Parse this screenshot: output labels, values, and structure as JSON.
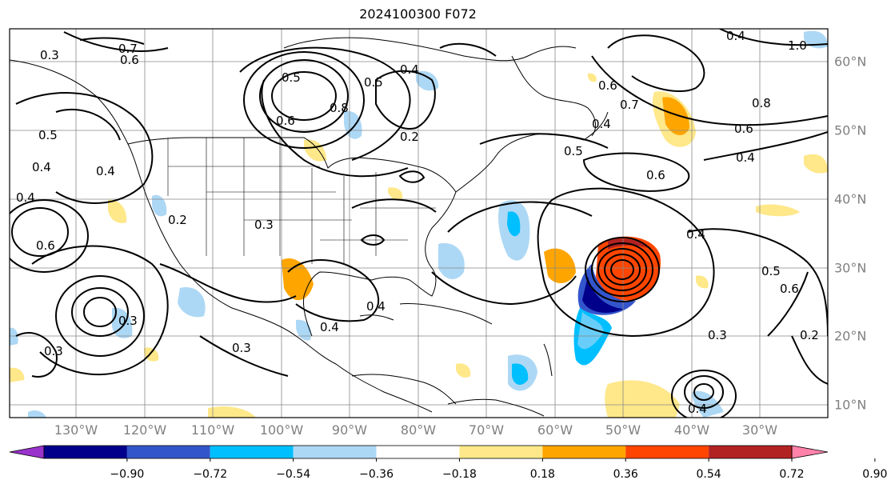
{
  "title": "2024100300 F072",
  "lon_labels": [
    "130°W",
    "120°W",
    "110°W",
    "100°W",
    "90°W",
    "80°W",
    "70°W",
    "60°W",
    "50°W",
    "40°W",
    "30°W"
  ],
  "lat_labels": [
    "60°N",
    "50°N",
    "40°N",
    "30°N",
    "20°N",
    "10°N"
  ],
  "colorbar": {
    "ticks": [
      "−0.90",
      "−0.72",
      "−0.54",
      "−0.36",
      "−0.18",
      "0.18",
      "0.36",
      "0.54",
      "0.72",
      "0.90"
    ],
    "colors": [
      "#9a33cc",
      "#00008b",
      "#3355cc",
      "#00bfff",
      "#add8f5",
      "#ffffff",
      "#ffe88a",
      "#ffa500",
      "#ff4500",
      "#b22222",
      "#ff82ab"
    ]
  },
  "contour_labels": [
    "0.7",
    "0.6",
    "0.4",
    "0.5",
    "0.4",
    "0.4",
    "0.6",
    "0.2",
    "0.3",
    "0.4",
    "0.5",
    "0.8",
    "0.6",
    "0.5",
    "0.2",
    "0.4",
    "0.3",
    "0.4",
    "0.5",
    "0.4",
    "0.6",
    "0.7",
    "0.6",
    "0.4",
    "0.8",
    "1.0",
    "0.6",
    "0.4",
    "0.4",
    "0.5",
    "0.6",
    "0.2",
    "0.3",
    "0.3",
    "0.3",
    "0.4",
    "0.3"
  ]
}
